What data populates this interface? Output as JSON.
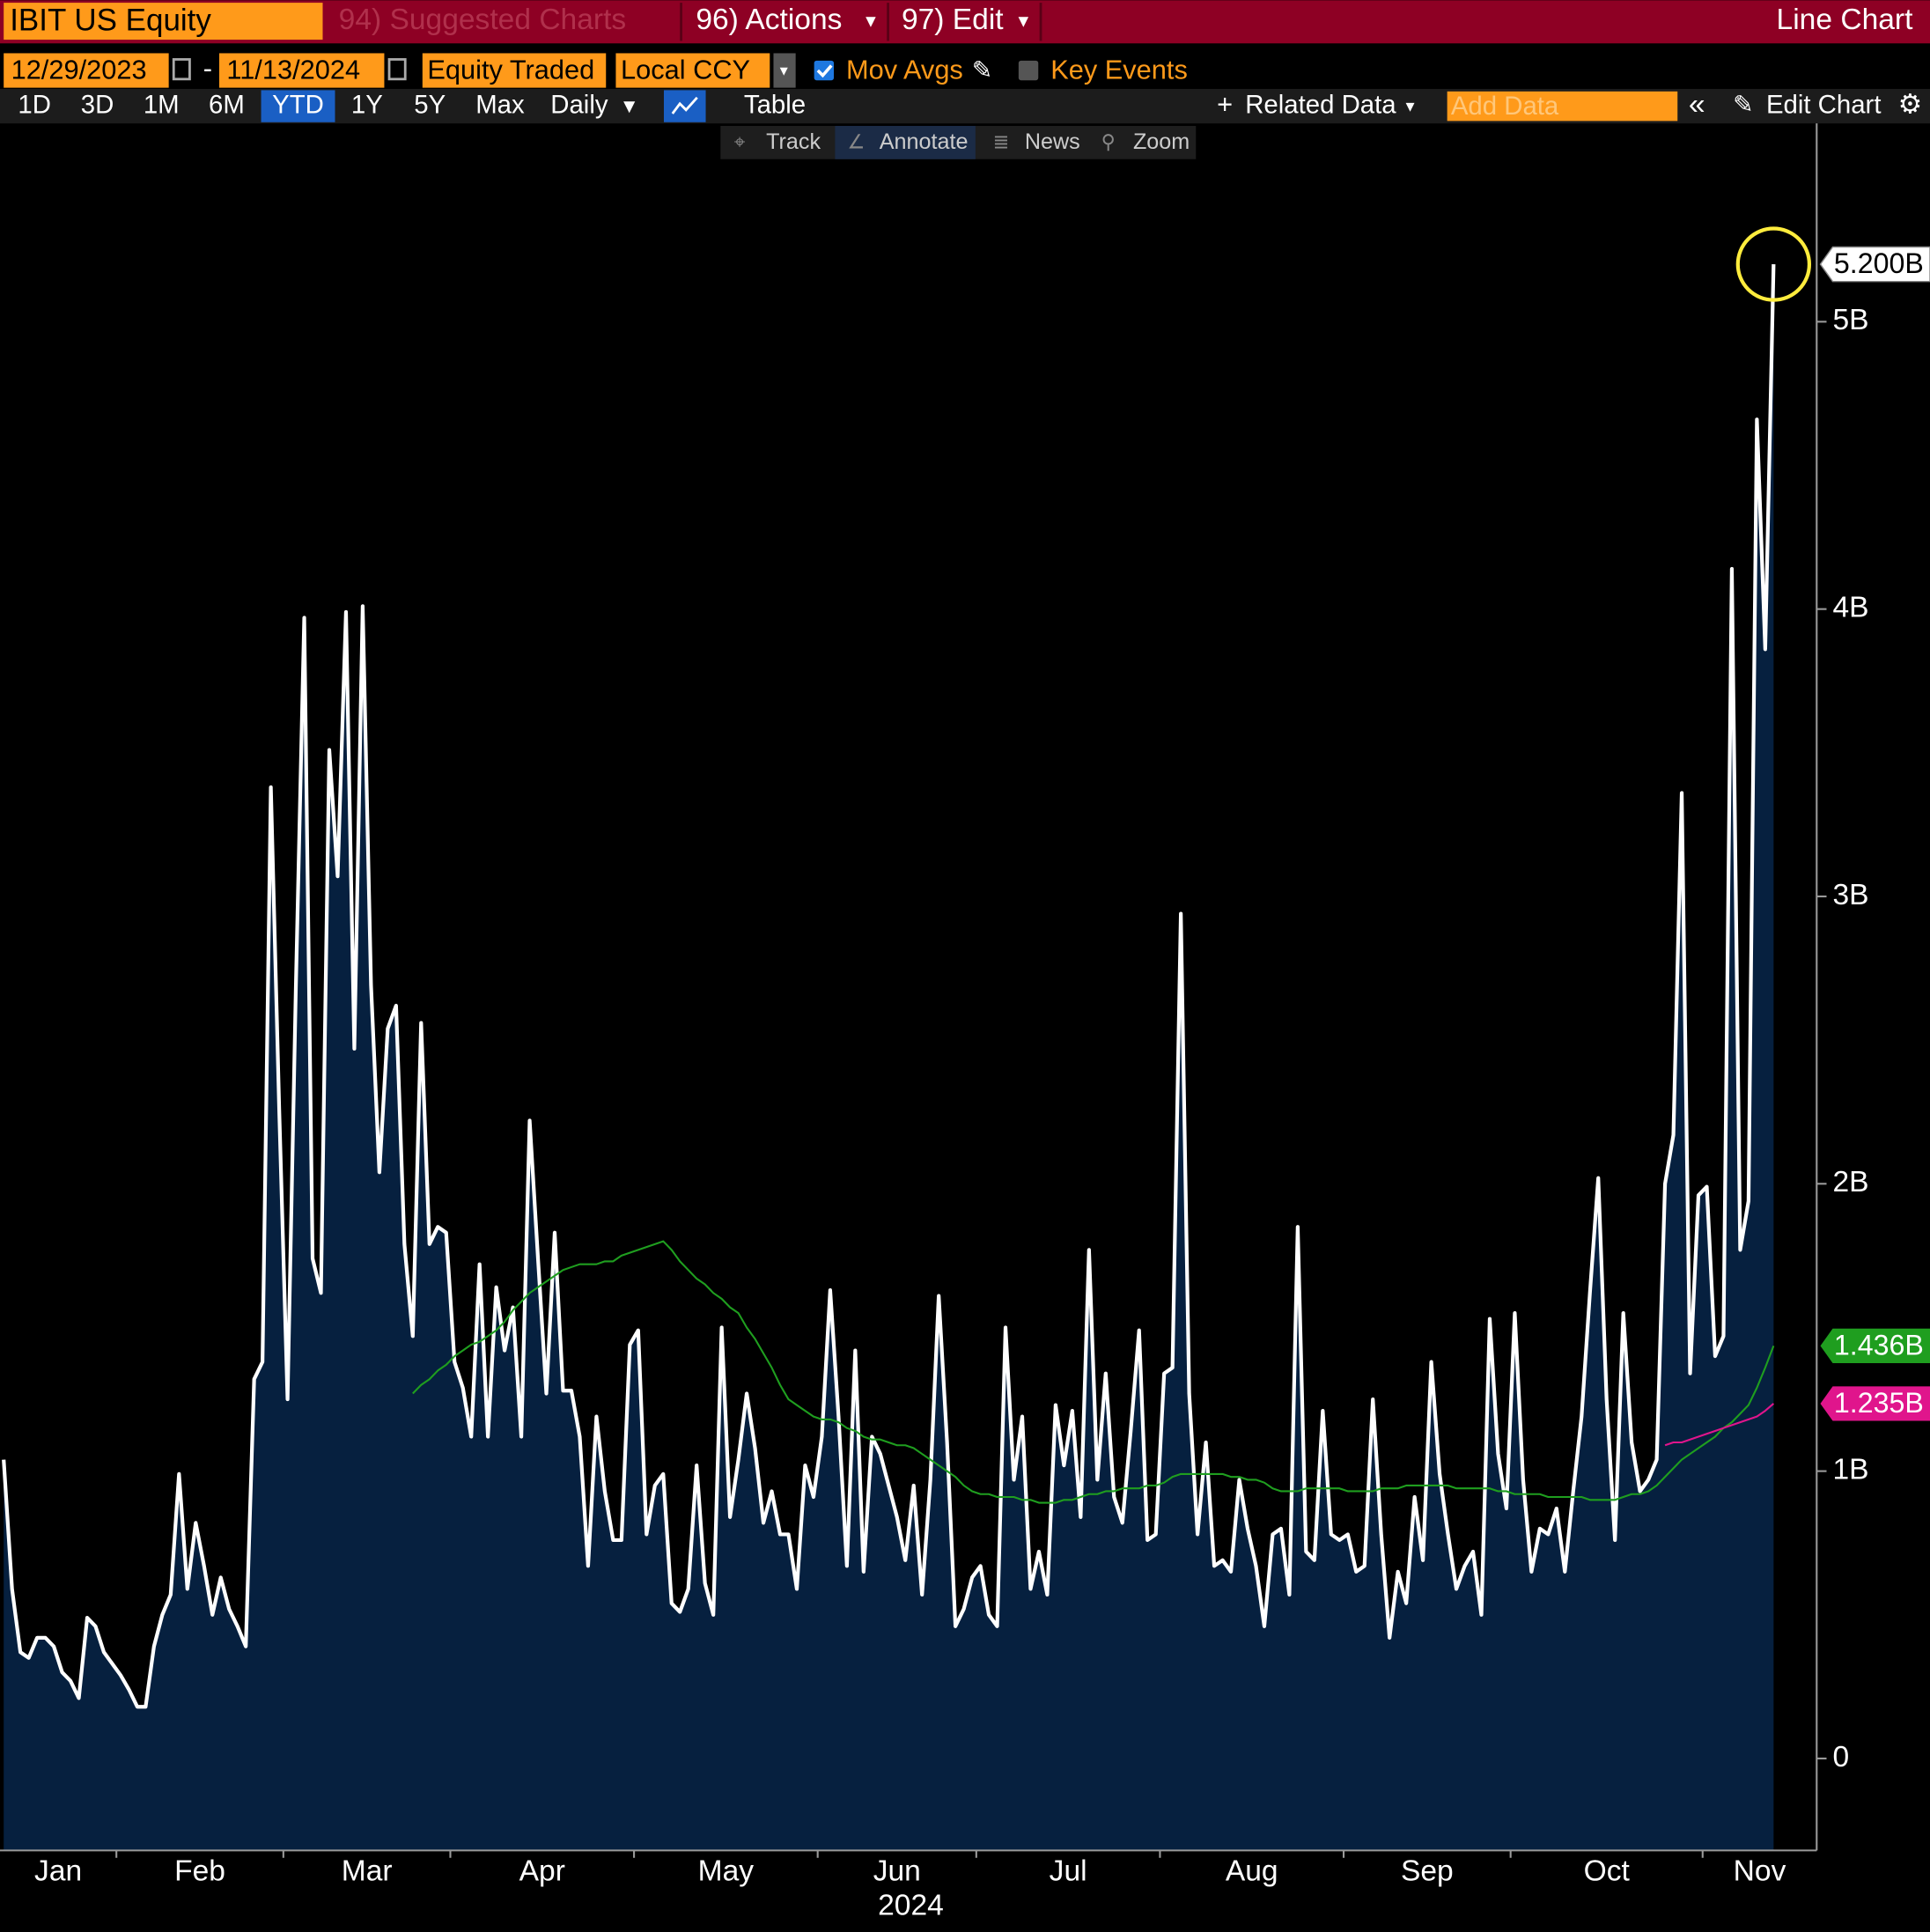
{
  "toolbar": {
    "security": "IBIT US Equity",
    "suggested": "94) Suggested Charts",
    "actions": "96) Actions",
    "edit": "97) Edit",
    "chart_kind": "Line Chart",
    "start_date": "12/29/2023",
    "date_separator": "-",
    "end_date": "11/13/2024",
    "field": "Equity Traded",
    "currency": "Local CCY",
    "mov_avgs": "Mov Avgs",
    "key_events": "Key Events",
    "periods": [
      "1D",
      "3D",
      "1M",
      "6M",
      "YTD",
      "1Y",
      "5Y",
      "Max"
    ],
    "selected_period": 4,
    "frequency": "Daily",
    "table": "Table",
    "related": "Related Data",
    "add_data": "Add Data",
    "edit_chart": "Edit Chart",
    "tools": [
      "Track",
      "Annotate",
      "News",
      "Zoom"
    ]
  },
  "chart_data": {
    "type": "line",
    "xlabel": "2024",
    "categories": [
      "Jan",
      null,
      null,
      null,
      null,
      null,
      null,
      null,
      null,
      null,
      null,
      null,
      null,
      null,
      "Feb",
      null,
      null,
      null,
      null,
      null,
      null,
      null,
      null,
      null,
      null,
      null,
      null,
      null,
      null,
      null,
      null,
      null,
      null,
      null,
      "Mar",
      null,
      null,
      null,
      null,
      null,
      null,
      null,
      null,
      null,
      null,
      null,
      null,
      null,
      null,
      null,
      null,
      null,
      null,
      null,
      "Apr",
      null,
      null,
      null,
      null,
      null,
      null,
      null,
      null,
      null,
      null,
      null,
      null,
      null,
      null,
      null,
      null,
      null,
      null,
      null,
      null,
      null,
      "May",
      null,
      null,
      null,
      null,
      null,
      null,
      null,
      null,
      null,
      null,
      null,
      null,
      null,
      null,
      null,
      null,
      null,
      null,
      null,
      null,
      null,
      "Jun",
      null,
      null,
      null,
      null,
      null,
      null,
      null,
      null,
      null,
      null,
      null,
      null,
      null,
      null,
      null,
      null,
      null,
      null,
      "Jul",
      null,
      null,
      null,
      null,
      null,
      null,
      null,
      null,
      null,
      null,
      null,
      null,
      null,
      null,
      null,
      null,
      null,
      null,
      null,
      null,
      null,
      "Aug",
      null,
      null,
      null,
      null,
      null,
      null,
      null,
      null,
      null,
      null,
      null,
      null,
      null,
      null,
      null,
      null,
      null,
      null,
      null,
      null,
      null,
      "Sep",
      null,
      null,
      null,
      null,
      null,
      null,
      null,
      null,
      null,
      null,
      null,
      null,
      null,
      null,
      null,
      null,
      null,
      null,
      null,
      "Oct",
      null,
      null,
      null,
      null,
      null,
      null,
      null,
      null,
      null,
      null,
      null,
      null,
      null,
      null,
      null,
      null,
      null,
      null,
      null,
      null,
      null,
      null,
      "Nov",
      null,
      null,
      null,
      null,
      null,
      null,
      null,
      null
    ],
    "series": [
      {
        "color": "#ffffff",
        "fill": "#06203f",
        "last_label": "5.200B",
        "values": [
          1.04,
          0.59,
          0.37,
          0.35,
          0.42,
          0.42,
          0.39,
          0.3,
          0.27,
          0.21,
          0.49,
          0.46,
          0.37,
          0.33,
          0.29,
          0.24,
          0.18,
          0.18,
          0.39,
          0.5,
          0.57,
          0.99,
          0.59,
          0.82,
          0.67,
          0.5,
          0.63,
          0.52,
          0.46,
          0.39,
          1.32,
          1.38,
          3.38,
          2.26,
          1.25,
          2.69,
          3.97,
          1.74,
          1.62,
          3.51,
          3.07,
          3.99,
          2.47,
          4.01,
          2.69,
          2.04,
          2.54,
          2.62,
          1.79,
          1.47,
          2.56,
          1.79,
          1.85,
          1.83,
          1.38,
          1.29,
          1.12,
          1.72,
          1.12,
          1.64,
          1.42,
          1.57,
          1.12,
          2.22,
          1.74,
          1.27,
          1.83,
          1.28,
          1.28,
          1.12,
          0.67,
          1.19,
          0.93,
          0.76,
          0.76,
          1.44,
          1.49,
          0.78,
          0.95,
          0.99,
          0.54,
          0.51,
          0.59,
          1.02,
          0.61,
          0.5,
          1.5,
          0.84,
          1.04,
          1.27,
          1.08,
          0.82,
          0.93,
          0.78,
          0.78,
          0.59,
          1.02,
          0.91,
          1.12,
          1.63,
          1.19,
          0.67,
          1.42,
          0.65,
          1.12,
          1.06,
          0.95,
          0.84,
          0.69,
          0.95,
          0.57,
          0.97,
          1.61,
          1.1,
          0.46,
          0.52,
          0.63,
          0.67,
          0.5,
          0.46,
          1.5,
          0.97,
          1.19,
          0.59,
          0.72,
          0.57,
          1.23,
          1.02,
          1.21,
          0.84,
          1.77,
          0.97,
          1.34,
          0.91,
          0.82,
          1.14,
          1.49,
          0.76,
          0.78,
          1.34,
          1.36,
          2.94,
          1.27,
          0.78,
          1.1,
          0.67,
          0.69,
          0.65,
          0.97,
          0.8,
          0.67,
          0.46,
          0.78,
          0.8,
          0.57,
          1.85,
          0.72,
          0.69,
          1.21,
          0.78,
          0.76,
          0.78,
          0.65,
          0.67,
          1.25,
          0.78,
          0.42,
          0.65,
          0.54,
          0.91,
          0.69,
          1.38,
          0.99,
          0.78,
          0.59,
          0.67,
          0.72,
          0.5,
          1.53,
          1.06,
          0.87,
          1.55,
          0.97,
          0.65,
          0.8,
          0.78,
          0.87,
          0.65,
          0.93,
          1.19,
          1.62,
          2.02,
          1.25,
          0.76,
          1.55,
          1.1,
          0.93,
          0.97,
          1.04,
          2.0,
          2.17,
          3.36,
          1.34,
          1.96,
          1.99,
          1.4,
          1.47,
          4.14,
          1.77,
          1.94,
          4.66,
          3.86,
          5.2
        ]
      },
      {
        "color": "#1f9e1f",
        "last_label": "1.436B",
        "values": [
          null,
          null,
          null,
          null,
          null,
          null,
          null,
          null,
          null,
          null,
          null,
          null,
          null,
          null,
          null,
          null,
          null,
          null,
          null,
          null,
          null,
          null,
          null,
          null,
          null,
          null,
          null,
          null,
          null,
          null,
          null,
          null,
          null,
          null,
          null,
          null,
          null,
          null,
          null,
          null,
          null,
          null,
          null,
          null,
          null,
          null,
          null,
          null,
          null,
          1.27,
          1.3,
          1.32,
          1.35,
          1.37,
          1.4,
          1.42,
          1.44,
          1.45,
          1.47,
          1.49,
          1.52,
          1.56,
          1.59,
          1.62,
          1.64,
          1.66,
          1.68,
          1.7,
          1.71,
          1.72,
          1.72,
          1.72,
          1.73,
          1.73,
          1.75,
          1.76,
          1.77,
          1.78,
          1.79,
          1.8,
          1.77,
          1.73,
          1.7,
          1.67,
          1.65,
          1.62,
          1.6,
          1.57,
          1.55,
          1.5,
          1.46,
          1.41,
          1.36,
          1.3,
          1.25,
          1.23,
          1.21,
          1.19,
          1.18,
          1.18,
          1.17,
          1.15,
          1.14,
          1.12,
          1.11,
          1.11,
          1.1,
          1.09,
          1.09,
          1.08,
          1.06,
          1.04,
          1.02,
          1.0,
          0.98,
          0.95,
          0.93,
          0.92,
          0.92,
          0.91,
          0.91,
          0.91,
          0.9,
          0.9,
          0.89,
          0.89,
          0.89,
          0.9,
          0.9,
          0.91,
          0.92,
          0.92,
          0.93,
          0.93,
          0.94,
          0.94,
          0.94,
          0.95,
          0.95,
          0.96,
          0.98,
          0.99,
          0.99,
          0.99,
          0.99,
          0.99,
          0.99,
          0.98,
          0.98,
          0.97,
          0.97,
          0.96,
          0.94,
          0.93,
          0.93,
          0.93,
          0.94,
          0.94,
          0.94,
          0.94,
          0.94,
          0.93,
          0.93,
          0.93,
          0.93,
          0.94,
          0.94,
          0.94,
          0.95,
          0.95,
          0.95,
          0.95,
          0.95,
          0.95,
          0.94,
          0.94,
          0.94,
          0.94,
          0.94,
          0.93,
          0.93,
          0.92,
          0.92,
          0.92,
          0.92,
          0.91,
          0.91,
          0.91,
          0.91,
          0.91,
          0.9,
          0.9,
          0.9,
          0.9,
          0.91,
          0.92,
          0.92,
          0.93,
          0.95,
          0.98,
          1.01,
          1.04,
          1.06,
          1.08,
          1.1,
          1.12,
          1.15,
          1.17,
          1.2,
          1.23,
          1.29,
          1.36,
          1.436
        ]
      },
      {
        "color": "#e0158c",
        "last_label": "1.235B",
        "values": [
          null,
          null,
          null,
          null,
          null,
          null,
          null,
          null,
          null,
          null,
          null,
          null,
          null,
          null,
          null,
          null,
          null,
          null,
          null,
          null,
          null,
          null,
          null,
          null,
          null,
          null,
          null,
          null,
          null,
          null,
          null,
          null,
          null,
          null,
          null,
          null,
          null,
          null,
          null,
          null,
          null,
          null,
          null,
          null,
          null,
          null,
          null,
          null,
          null,
          null,
          null,
          null,
          null,
          null,
          null,
          null,
          null,
          null,
          null,
          null,
          null,
          null,
          null,
          null,
          null,
          null,
          null,
          null,
          null,
          null,
          null,
          null,
          null,
          null,
          null,
          null,
          null,
          null,
          null,
          null,
          null,
          null,
          null,
          null,
          null,
          null,
          null,
          null,
          null,
          null,
          null,
          null,
          null,
          null,
          null,
          null,
          null,
          null,
          null,
          null,
          null,
          null,
          null,
          null,
          null,
          null,
          null,
          null,
          null,
          null,
          null,
          null,
          null,
          null,
          null,
          null,
          null,
          null,
          null,
          null,
          null,
          null,
          null,
          null,
          null,
          null,
          null,
          null,
          null,
          null,
          null,
          null,
          null,
          null,
          null,
          null,
          null,
          null,
          null,
          null,
          null,
          null,
          null,
          null,
          null,
          null,
          null,
          null,
          null,
          null,
          null,
          null,
          null,
          null,
          null,
          null,
          null,
          null,
          null,
          null,
          null,
          null,
          null,
          null,
          null,
          null,
          null,
          null,
          null,
          null,
          null,
          null,
          null,
          null,
          null,
          null,
          null,
          null,
          null,
          null,
          null,
          null,
          null,
          null,
          null,
          null,
          null,
          null,
          null,
          null,
          null,
          null,
          null,
          null,
          null,
          null,
          null,
          null,
          null,
          1.09,
          1.1,
          1.1,
          1.11,
          1.12,
          1.13,
          1.14,
          1.15,
          1.16,
          1.17,
          1.18,
          1.19,
          1.21,
          1.235
        ]
      }
    ],
    "ylim": [
      -0.32,
      5.69
    ],
    "yticks": [
      0,
      {
        "value": 1,
        "label": "1B"
      },
      {
        "value": 2,
        "label": "2B"
      },
      {
        "value": 3,
        "label": "3B"
      },
      {
        "value": 4,
        "label": "4B"
      },
      {
        "value": 5,
        "label": "5B"
      }
    ],
    "y_axis_side": "right"
  }
}
